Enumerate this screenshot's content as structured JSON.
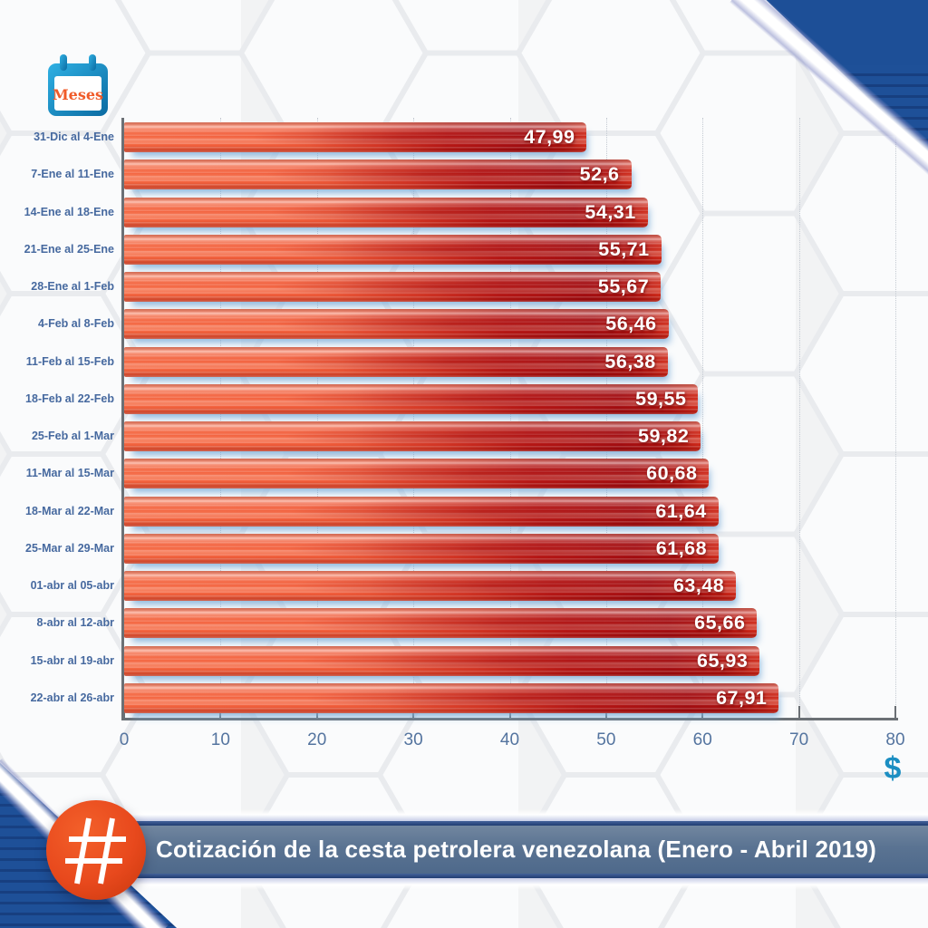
{
  "ylabel_badge": {
    "label": "Meses"
  },
  "axis": {
    "currency_symbol": "$"
  },
  "footer": {
    "title": "Cotización de la cesta petrolera venezolana (Enero - Abril 2019)",
    "hashtag_symbol": "#"
  },
  "chart_data": {
    "type": "bar",
    "orientation": "horizontal",
    "title": "Cotización de la cesta petrolera venezolana (Enero - Abril 2019)",
    "xlabel": "$",
    "ylabel": "Meses",
    "xlim": [
      0,
      80
    ],
    "x_ticks": [
      "0",
      "10",
      "20",
      "30",
      "40",
      "50",
      "60",
      "70",
      "80"
    ],
    "grid": "vertical dotted gridlines",
    "legend": "none",
    "categories": [
      "31-Dic al 4-Ene",
      "7-Ene al 11-Ene",
      "14-Ene al 18-Ene",
      "21-Ene al 25-Ene",
      "28-Ene al 1-Feb",
      "4-Feb al 8-Feb",
      "11-Feb al 15-Feb",
      "18-Feb al 22-Feb",
      "25-Feb al 1-Mar",
      "11-Mar al 15-Mar",
      "18-Mar al 22-Mar",
      "25-Mar al 29-Mar",
      "01-abr al 05-abr",
      "8-abr al 12-abr",
      "15-abr al 19-abr",
      "22-abr al 26-abr"
    ],
    "values": [
      47.99,
      52.6,
      54.31,
      55.71,
      55.67,
      56.46,
      56.38,
      59.55,
      59.82,
      60.68,
      61.64,
      61.68,
      63.48,
      65.66,
      65.93,
      67.91
    ],
    "value_labels": [
      "47,99",
      "52,6",
      "54,31",
      "55,71",
      "55,67",
      "56,46",
      "56,38",
      "59,55",
      "59,82",
      "60,68",
      "61,64",
      "61,68",
      "63,48",
      "65,66",
      "65,93",
      "67,91"
    ]
  },
  "colors": {
    "bar_orange": "#f15b39",
    "bar_dark_red": "#a30d11",
    "category_label_blue": "#46699f",
    "banner_slate": "#5a7392",
    "corner_navy": "#1d4f97",
    "accent_orange": "#e8491d",
    "calendar_blue": "#1b9ad2",
    "dollar_cyan": "#1b8ec2"
  }
}
